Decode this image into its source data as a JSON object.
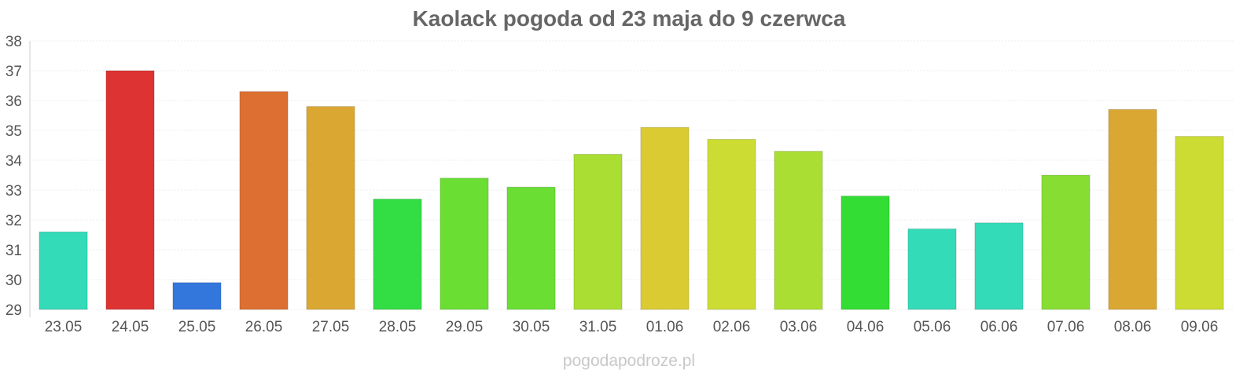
{
  "chart_data": {
    "type": "bar",
    "title": "Kaolack pogoda od 23 maja do 9 czerwca",
    "xlabel": "",
    "ylabel": "",
    "ylim": [
      29,
      38
    ],
    "yticks": [
      "29",
      "30",
      "31",
      "32",
      "33",
      "34",
      "35",
      "36",
      "37",
      "38"
    ],
    "grid": true,
    "legend": "none",
    "categories": [
      "23.05",
      "24.05",
      "25.05",
      "26.05",
      "27.05",
      "28.05",
      "29.05",
      "30.05",
      "31.05",
      "01.06",
      "02.06",
      "03.06",
      "04.06",
      "05.06",
      "06.06",
      "07.06",
      "08.06",
      "09.06"
    ],
    "values": [
      31.6,
      37.0,
      29.9,
      36.3,
      35.8,
      32.7,
      33.4,
      33.1,
      34.2,
      35.1,
      34.7,
      34.3,
      32.8,
      31.7,
      31.9,
      33.5,
      35.7,
      34.8
    ],
    "colors": [
      "#33dbb8",
      "#dd3333",
      "#3377dd",
      "#dd6f33",
      "#dba733",
      "#33dd44",
      "#6ade33",
      "#6ade33",
      "#aade33",
      "#dbcb33",
      "#ccdc33",
      "#aade33",
      "#33dd33",
      "#33dbb8",
      "#33dbb8",
      "#88dd33",
      "#dba733",
      "#ccdc33"
    ]
  },
  "watermark": "pogodapodroze.pl"
}
